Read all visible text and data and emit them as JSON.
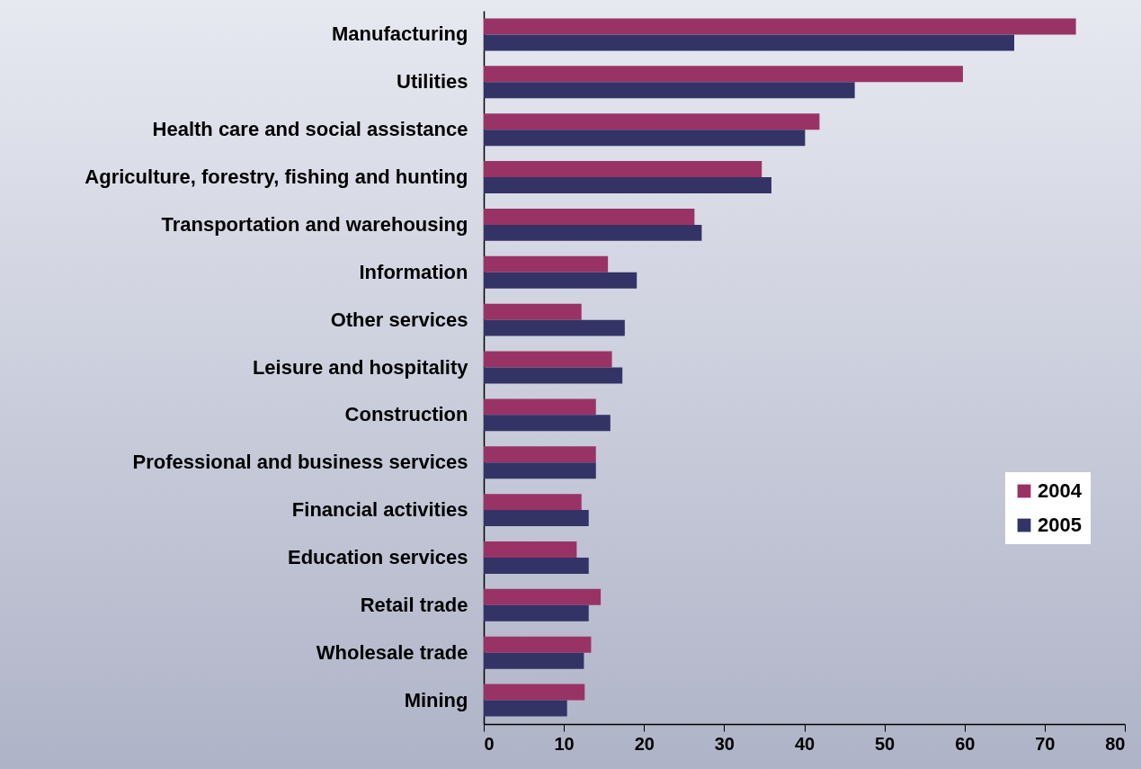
{
  "chart_data": {
    "type": "bar",
    "orientation": "horizontal",
    "categories": [
      "Manufacturing",
      "Utilities",
      "Health care and social assistance",
      "Agriculture, forestry, fishing and hunting",
      "Transportation and warehousing",
      "Information",
      "Other services",
      "Leisure and hospitality",
      "Construction",
      "Professional and business services",
      "Financial activities",
      "Education services",
      "Retail trade",
      "Wholesale trade",
      "Mining"
    ],
    "series": [
      {
        "name": "2004",
        "color": "#993366",
        "values": [
          73.9,
          59.8,
          41.9,
          34.7,
          26.3,
          15.5,
          12.2,
          16.0,
          14.0,
          14.0,
          12.2,
          11.6,
          14.6,
          13.4,
          12.6
        ]
      },
      {
        "name": "2005",
        "color": "#333366",
        "values": [
          66.2,
          46.3,
          40.1,
          35.9,
          27.2,
          19.1,
          17.6,
          17.3,
          15.8,
          14.0,
          13.1,
          13.1,
          13.1,
          12.5,
          10.4
        ]
      }
    ],
    "xlim": [
      0,
      80
    ],
    "xticks": [
      0,
      10,
      20,
      30,
      40,
      50,
      60,
      70,
      80
    ],
    "grid": false,
    "legend": "right"
  }
}
